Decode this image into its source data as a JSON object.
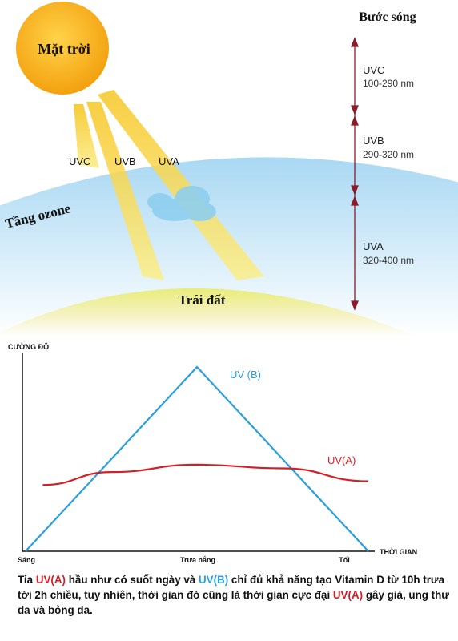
{
  "diagram": {
    "sun_label": "Mặt trời",
    "wavelength_title": "Bước sóng",
    "ozone_label": "Tầng ozone",
    "earth_label": "Trái đất",
    "rays": [
      "UVC",
      "UVB",
      "UVA"
    ],
    "bands": [
      {
        "name": "UVC",
        "range": "100-290 nm"
      },
      {
        "name": "UVB",
        "range": "290-320 nm"
      },
      {
        "name": "UVA",
        "range": "320-400 nm"
      }
    ],
    "colors": {
      "sun": "#f7b21b",
      "ray": "#f6dc3a",
      "sky": "#bfe3f7",
      "earth": "#d7df4a",
      "arrow": "#8b1a2a"
    }
  },
  "chart_data": {
    "type": "line",
    "ylabel": "CƯỜNG ĐỘ",
    "xlabel": "THỜI GIAN",
    "categories": [
      "Sáng",
      "Trưa nắng",
      "Tối"
    ],
    "series": [
      {
        "name": "UV (B)",
        "color": "#2a9fe0",
        "x": [
          0,
          0.5,
          1
        ],
        "values": [
          0,
          1,
          0
        ]
      },
      {
        "name": "UV(A)",
        "color": "#d32027",
        "x": [
          0.05,
          0.25,
          0.5,
          0.75,
          1.0
        ],
        "values": [
          0.36,
          0.43,
          0.47,
          0.45,
          0.38
        ]
      }
    ],
    "ylim": [
      0,
      1.05
    ],
    "grid": false
  },
  "caption": {
    "p1": "Tia ",
    "uva1": "UV(A)",
    "p2": " hầu như có suốt ngày và ",
    "uvb": "UV(B)",
    "p3": " chỉ đủ khả năng tạo Vitamin D từ 10h trưa tới 2h chiều, tuy nhiên, thời gian đó cũng là thời gian cực đại ",
    "uva2": "UV(A)",
    "p4": " gây già, ung thư da và bỏng da."
  }
}
